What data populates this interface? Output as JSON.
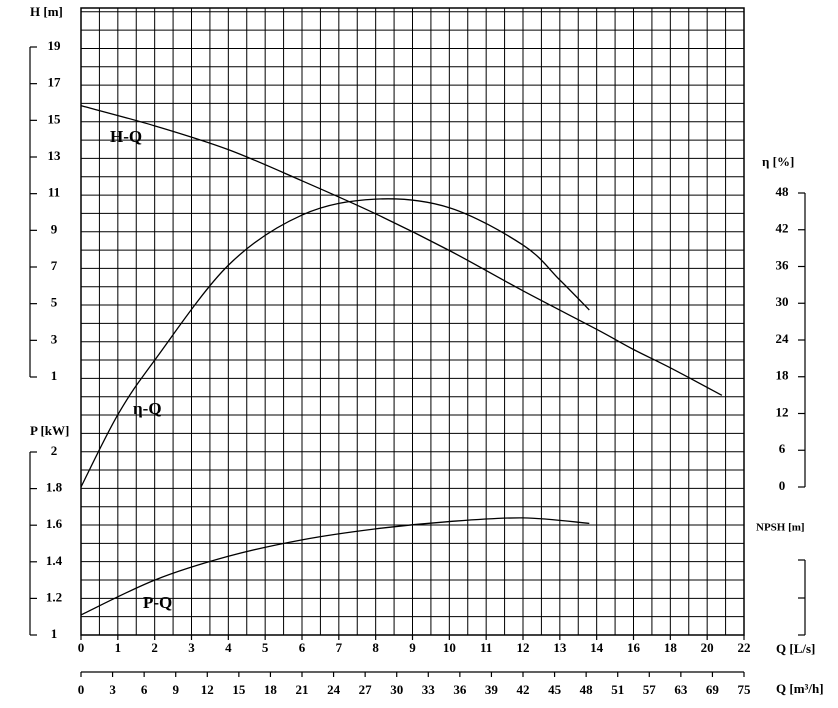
{
  "chart_data": {
    "type": "line",
    "xlabel": "Q [L/s]",
    "xticks": [
      0,
      1,
      2,
      3,
      4,
      5,
      6,
      7,
      8,
      9,
      10,
      11,
      12,
      13,
      14,
      16,
      18,
      20,
      22
    ],
    "x2label": "Q [m³/h]",
    "x2ticks": [
      0,
      3,
      6,
      9,
      12,
      15,
      18,
      21,
      24,
      27,
      30,
      33,
      36,
      39,
      42,
      45,
      48,
      51,
      57,
      63,
      69,
      75
    ],
    "ylabel": "H [m]",
    "ylim": [
      1,
      19
    ],
    "yticks": [
      1,
      3,
      5,
      7,
      9,
      11,
      13,
      15,
      17,
      19
    ],
    "y2label": "η [%]",
    "y2lim": [
      0,
      48
    ],
    "y2ticks": [
      0,
      6,
      12,
      18,
      24,
      30,
      36,
      42,
      48
    ],
    "y3label": "P [kW]",
    "y3lim": [
      1,
      2
    ],
    "y3ticks": [
      1,
      1.2,
      1.4,
      1.6,
      1.8,
      2
    ],
    "y4label": "NPSH [m]",
    "series": [
      {
        "name": "H-Q",
        "axis": "y",
        "color": "#000000",
        "x": [
          0,
          2,
          4,
          6,
          8,
          10,
          12,
          14,
          16,
          18,
          20.8
        ],
        "values": [
          15.8,
          14.7,
          13.4,
          11.7,
          9.9,
          7.9,
          5.7,
          3.6,
          2.5,
          1.5,
          0
        ]
      },
      {
        "name": "η-Q",
        "axis": "y2",
        "color": "#000000",
        "x": [
          0,
          1,
          2,
          4,
          6,
          8,
          10,
          12,
          13,
          13.8
        ],
        "values": [
          0,
          11.8,
          20.7,
          36.2,
          44.4,
          47.0,
          45.6,
          39.5,
          33.8,
          28.9
        ]
      },
      {
        "name": "P-Q",
        "axis": "y3",
        "color": "#000000",
        "x": [
          0,
          2,
          4,
          6,
          8,
          10,
          12,
          13.8
        ],
        "values": [
          1.11,
          1.3,
          1.43,
          1.52,
          1.58,
          1.62,
          1.64,
          1.61
        ]
      }
    ]
  }
}
